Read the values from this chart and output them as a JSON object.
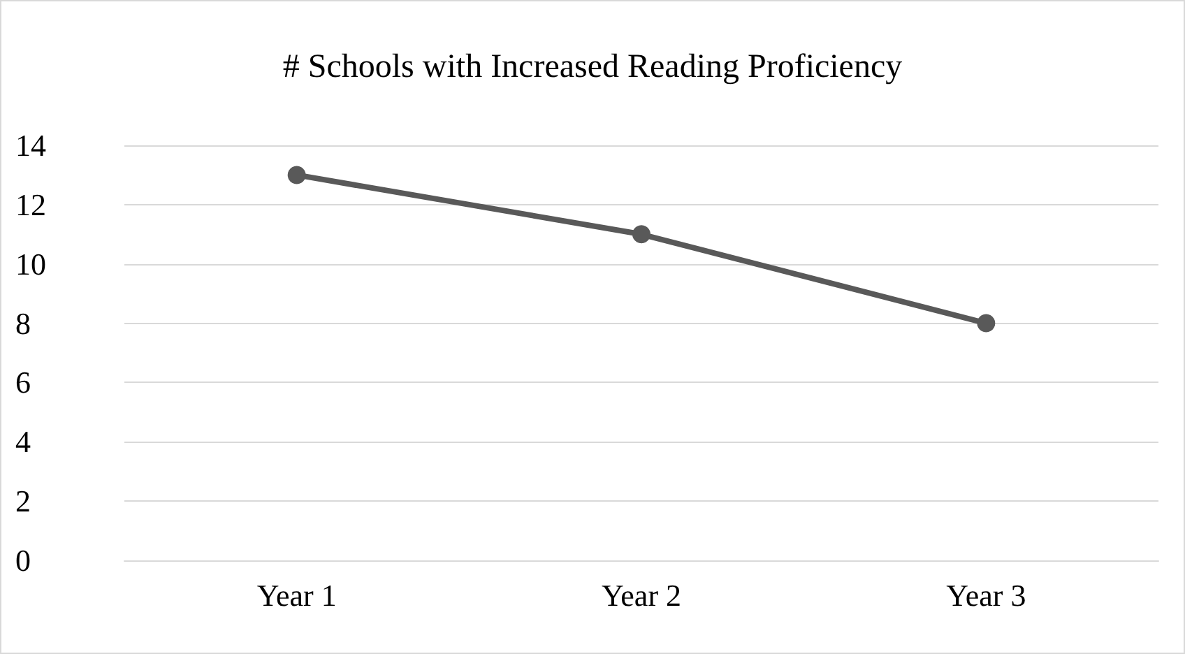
{
  "chart_data": {
    "type": "line",
    "title": "# Schools with Increased Reading Proficiency",
    "categories": [
      "Year 1",
      "Year 2",
      "Year 3"
    ],
    "series": [
      {
        "color": "#595959",
        "values": [
          13,
          11,
          8
        ]
      }
    ],
    "ylim": [
      0,
      14
    ],
    "yticks": [
      0,
      2,
      4,
      6,
      8,
      10,
      12,
      14
    ],
    "grid": "y",
    "marker": "circle",
    "line_style": "solid"
  }
}
